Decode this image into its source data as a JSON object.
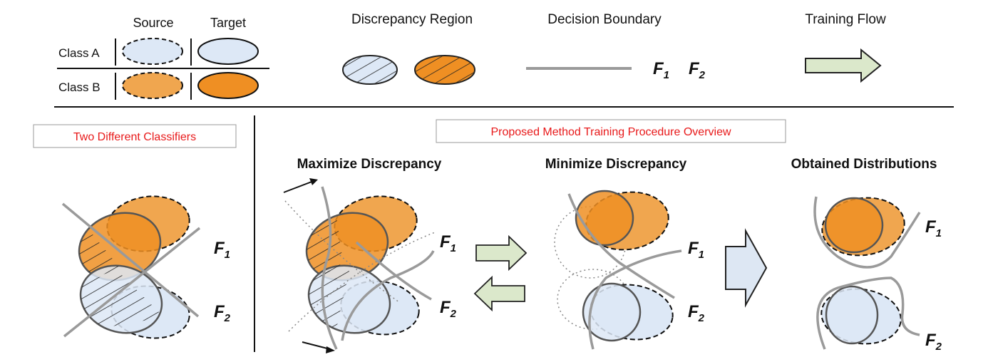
{
  "legend": {
    "source_label": "Source",
    "target_label": "Target",
    "class_a_label": "Class A",
    "class_b_label": "Class B",
    "discrepancy_region_label": "Discrepancy Region",
    "decision_boundary_label": "Decision Boundary",
    "training_flow_label": "Training Flow",
    "f1_main": "F",
    "f1_sub": "1",
    "f2_main": "F",
    "f2_sub": "2"
  },
  "panels": {
    "left_title": "Two Different Classifiers",
    "method_title": "Proposed Method Training Procedure Overview",
    "step1_title": "Maximize Discrepancy",
    "step2_title": "Minimize Discrepancy",
    "step3_title": "Obtained Distributions"
  },
  "classifier": {
    "main": "F",
    "sub1": "1",
    "sub2": "2"
  },
  "colors": {
    "class_a_fill": "#dde8f6",
    "class_b_fill": "#f0a64f",
    "class_b_dark": "#ef8f23",
    "boundary": "#9a9a9a",
    "arrow_fill": "#dbe8cb",
    "arrow_big_fill": "#dde7f3",
    "title_red": "#e8191a"
  }
}
